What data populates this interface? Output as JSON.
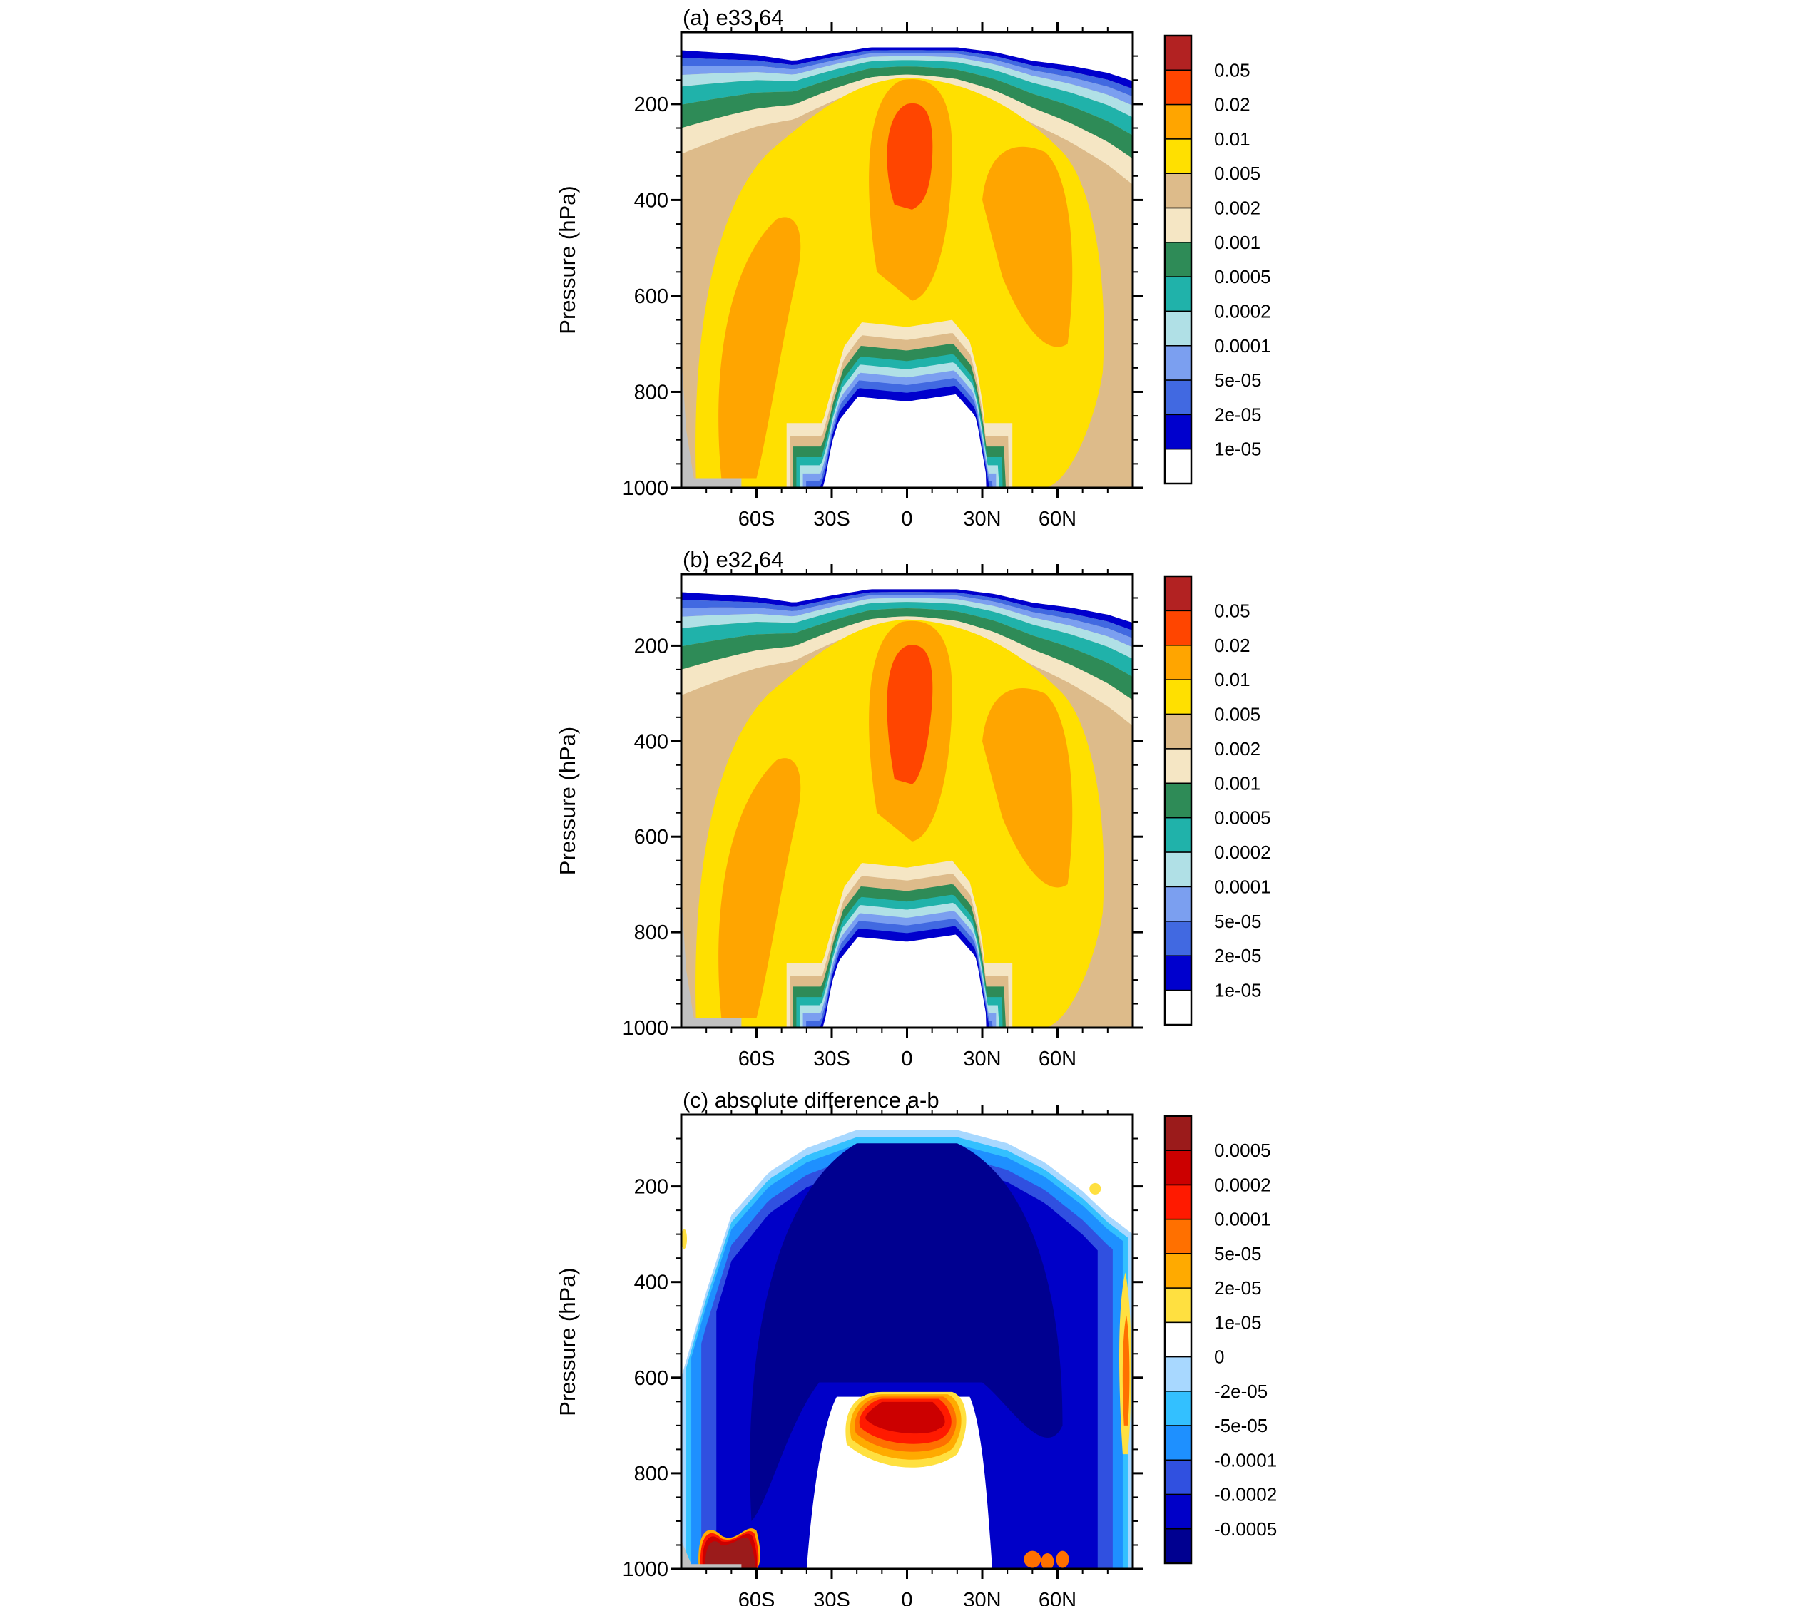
{
  "chart_data": [
    {
      "type": "contour",
      "title": "(a) e33.64",
      "ylabel": "Pressure (hPa)",
      "xlabel": "",
      "y_axis": {
        "reversed": true,
        "range": [
          50,
          1000
        ],
        "ticks": [
          "200",
          "400",
          "600",
          "800",
          "1000"
        ]
      },
      "x_axis": {
        "range": [
          -90,
          90
        ],
        "ticks": [
          "60S",
          "30S",
          "0",
          "30N",
          "60N"
        ]
      },
      "levels": [
        "0.05",
        "0.02",
        "0.01",
        "0.005",
        "0.002",
        "0.001",
        "0.0005",
        "0.0002",
        "0.0001",
        "5e-05",
        "2e-05",
        "1e-05"
      ],
      "colors": [
        "#b22222",
        "#ff4500",
        "#ffa500",
        "#ffe000",
        "#ddbb8a",
        "#f5e6c4",
        "#2e8b57",
        "#20b2aa",
        "#b0e0e6",
        "#7b9ff0",
        "#4169e1",
        "#0000cd",
        "#ffffff"
      ]
    },
    {
      "type": "contour",
      "title": "(b) e32.64",
      "ylabel": "Pressure (hPa)",
      "xlabel": "",
      "y_axis": {
        "reversed": true,
        "range": [
          50,
          1000
        ],
        "ticks": [
          "200",
          "400",
          "600",
          "800",
          "1000"
        ]
      },
      "x_axis": {
        "range": [
          -90,
          90
        ],
        "ticks": [
          "60S",
          "30S",
          "0",
          "30N",
          "60N"
        ]
      },
      "levels": [
        "0.05",
        "0.02",
        "0.01",
        "0.005",
        "0.002",
        "0.001",
        "0.0005",
        "0.0002",
        "0.0001",
        "5e-05",
        "2e-05",
        "1e-05"
      ],
      "colors": [
        "#b22222",
        "#ff4500",
        "#ffa500",
        "#ffe000",
        "#ddbb8a",
        "#f5e6c4",
        "#2e8b57",
        "#20b2aa",
        "#b0e0e6",
        "#7b9ff0",
        "#4169e1",
        "#0000cd",
        "#ffffff"
      ]
    },
    {
      "type": "contour",
      "title": "(c) absolute difference a-b",
      "ylabel": "Pressure (hPa)",
      "xlabel": "",
      "y_axis": {
        "reversed": true,
        "range": [
          50,
          1000
        ],
        "ticks": [
          "200",
          "400",
          "600",
          "800",
          "1000"
        ]
      },
      "x_axis": {
        "range": [
          -90,
          90
        ],
        "ticks": [
          "60S",
          "30S",
          "0",
          "30N",
          "60N"
        ]
      },
      "levels": [
        "0.0005",
        "0.0002",
        "0.0001",
        "5e-05",
        "2e-05",
        "1e-05",
        "0",
        "-2e-05",
        "-5e-05",
        "-0.0001",
        "-0.0002",
        "-0.0005"
      ],
      "colors": [
        "#9b1b1b",
        "#cc0000",
        "#ff1a00",
        "#ff7000",
        "#ffaa00",
        "#ffe040",
        "#ffffff",
        "#a8d8ff",
        "#33c0ff",
        "#1e90ff",
        "#3050e0",
        "#0000c8",
        "#000090"
      ]
    }
  ]
}
